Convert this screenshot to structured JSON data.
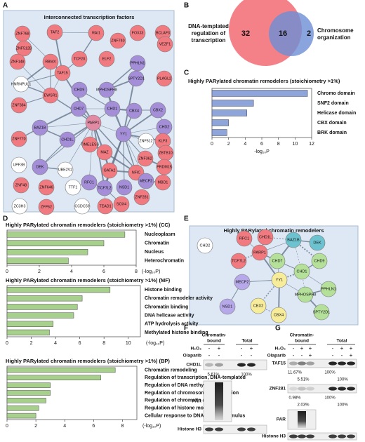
{
  "panel_labels": [
    "A",
    "B",
    "C",
    "D",
    "E",
    "F",
    "G"
  ],
  "network_a": {
    "title": "Interconnected transcription factors",
    "nodes": [
      {
        "label": "ZNF768",
        "color": "#f07a80"
      },
      {
        "label": "TAF2",
        "color": "#f07a80"
      },
      {
        "label": "RAI1",
        "color": "#f07a80"
      },
      {
        "label": "FOXJ3",
        "color": "#f07a80"
      },
      {
        "label": "BCLAF3",
        "color": "#f07a80"
      },
      {
        "label": "ZNF512B",
        "color": "#f07a80"
      },
      {
        "label": "ZNF740",
        "color": "#f07a80"
      },
      {
        "label": "VEZF1",
        "color": "#f07a80"
      },
      {
        "label": "ZNF148",
        "color": "#f07a80"
      },
      {
        "label": "RBMX",
        "color": "#f07a80"
      },
      {
        "label": "TCF20",
        "color": "#f07a80"
      },
      {
        "label": "ELF2",
        "color": "#f07a80"
      },
      {
        "label": "PPHLN1",
        "color": "#a48ed8"
      },
      {
        "label": "TAF15",
        "color": "#f07a80"
      },
      {
        "label": "SPTY2D1",
        "color": "#a48ed8"
      },
      {
        "label": "PLAGL2",
        "color": "#f07a80"
      },
      {
        "label": "HNRNPUL1",
        "color": "#ffffff"
      },
      {
        "label": "CHD9",
        "color": "#a48ed8"
      },
      {
        "label": "MPHOSPH8",
        "color": "#a48ed8"
      },
      {
        "label": "EWSR1",
        "color": "#f07a80"
      },
      {
        "label": "CHD7",
        "color": "#a48ed8"
      },
      {
        "label": "CHD1",
        "color": "#a48ed8"
      },
      {
        "label": "CBX4",
        "color": "#a48ed8"
      },
      {
        "label": "CBX2",
        "color": "#a48ed8"
      },
      {
        "label": "CHD2",
        "color": "#a48ed8"
      },
      {
        "label": "ZNF384",
        "color": "#f07a80"
      },
      {
        "label": "PARP1",
        "color": "#e28aa4"
      },
      {
        "label": "YY1",
        "color": "#a48ed8"
      },
      {
        "label": "ZNF512",
        "color": "#ffffff"
      },
      {
        "label": "KLF3",
        "color": "#f07a80"
      },
      {
        "label": "BAZ1B",
        "color": "#a48ed8"
      },
      {
        "label": "CHD1L",
        "color": "#a48ed8"
      },
      {
        "label": "ZNF770",
        "color": "#f07a80"
      },
      {
        "label": "ZBTB10",
        "color": "#f07a80"
      },
      {
        "label": "TIMELESS",
        "color": "#f07a80"
      },
      {
        "label": "MAZ",
        "color": "#f07a80"
      },
      {
        "label": "ZNF362",
        "color": "#f07a80"
      },
      {
        "label": "UPF3B",
        "color": "#ffffff"
      },
      {
        "label": "DEK",
        "color": "#a48ed8"
      },
      {
        "label": "UBE2V2",
        "color": "#ffffff"
      },
      {
        "label": "GATA2",
        "color": "#f07a80"
      },
      {
        "label": "NFIC",
        "color": "#f07a80"
      },
      {
        "label": "PRDM15",
        "color": "#f07a80"
      },
      {
        "label": "TCF7L2",
        "color": "#a48ed8"
      },
      {
        "label": "RFC1",
        "color": "#a48ed8"
      },
      {
        "label": "MECP2",
        "color": "#a48ed8"
      },
      {
        "label": "MBD1",
        "color": "#f07a80"
      },
      {
        "label": "ZNF48",
        "color": "#f07a80"
      },
      {
        "label": "ZNF646",
        "color": "#f07a80"
      },
      {
        "label": "TTF1",
        "color": "#ffffff"
      },
      {
        "label": "NSD1",
        "color": "#a48ed8"
      },
      {
        "label": "SOX4",
        "color": "#f07a80"
      },
      {
        "label": "ZNF281",
        "color": "#f07a80"
      },
      {
        "label": "ZC3H3",
        "color": "#ffffff"
      },
      {
        "label": "ZFP62",
        "color": "#f07a80"
      },
      {
        "label": "CCDC59",
        "color": "#ffffff"
      },
      {
        "label": "TEAD1",
        "color": "#f07a80"
      }
    ]
  },
  "venn": {
    "left_label": [
      "DNA-templated",
      "regulation of",
      "transcription"
    ],
    "right_label": [
      "Chromosome",
      "organization"
    ],
    "left_only": 32,
    "overlap": 16,
    "right_only": 2,
    "left_color": "#f26b73",
    "right_color": "#6d8fd6"
  },
  "chart_data": [
    {
      "type": "bar",
      "title": "Highly PARylated chromatin remodelers (stoichiometry >1%)",
      "categories": [
        "Chromo domain",
        "SNF2 domain",
        "Helicase domain",
        "CBX domain",
        "BRK domain"
      ],
      "values": [
        11.5,
        5,
        4.2,
        2,
        1.8
      ],
      "color": "#8ea5dc",
      "xlim": [
        0,
        12
      ],
      "xticks": [
        0,
        2,
        4,
        6,
        8,
        10,
        12
      ],
      "xlabel": "-log₁₀P"
    },
    {
      "type": "bar",
      "title": "Highly PARylated chromatin remodelers (stoichiometry >1%) (CC)",
      "categories": [
        "Nucleoplasm",
        "Chromatin",
        "Nucleus",
        "Heterochromatin"
      ],
      "values": [
        7.3,
        6,
        5,
        3.8
      ],
      "color": "#a8d08d",
      "xlim": [
        0,
        8
      ],
      "xticks": [
        0,
        2,
        4,
        6,
        8
      ],
      "xlabel": "(-log₁₀P)"
    },
    {
      "type": "bar",
      "title": "Highly PARylated chromatin remodelers (stoichiometry >1%) (MF)",
      "categories": [
        "Histone binding",
        "Chromatin remodeler activity",
        "Chromatin binding",
        "DNA helicase activity",
        "ATP hydrolysis activity",
        "Methylated histone binding"
      ],
      "values": [
        8.5,
        6.2,
        5.8,
        5.5,
        3.8,
        3.5
      ],
      "color": "#a8d08d",
      "xlim": [
        0,
        11
      ],
      "xticks": [
        0,
        2,
        4,
        6,
        8,
        10
      ],
      "xlabel": "(-log₁₀P)"
    },
    {
      "type": "bar",
      "title": "Highly PARylated chromatin remodelers (stoichiometry >1%) (BP)",
      "categories": [
        "Chromatin remodeling",
        "Regulation of transcription, DNA-templated",
        "Regulation of DNA methylation",
        "Regulation of chromosome organization",
        "Regulation of chromatin assembly",
        "Regulation of histone modification",
        "Cellular response to DNA damage stimulus"
      ],
      "values": [
        7.5,
        6.5,
        3,
        3,
        2.7,
        2.2,
        2
      ],
      "color": "#a8d08d",
      "xlim": [
        0,
        9
      ],
      "xticks": [
        0,
        2,
        4,
        6,
        8
      ],
      "xlabel": "(-log₁₀P)"
    }
  ],
  "network_e": {
    "title": "Highly PARylated chromatin remodelers",
    "nodes": [
      {
        "label": "CHD2",
        "color": "#ffffff"
      },
      {
        "label": "RFC1",
        "color": "#f07a80"
      },
      {
        "label": "CHD1L",
        "color": "#f07a80"
      },
      {
        "label": "BAZ1B",
        "color": "#6cc3cf"
      },
      {
        "label": "DEK",
        "color": "#6cc3cf"
      },
      {
        "label": "PARP1",
        "color": "#f07a80"
      },
      {
        "label": "TCF7L2",
        "color": "#f07a80"
      },
      {
        "label": "CHD7",
        "color": "#b4e09a"
      },
      {
        "label": "CHD9",
        "color": "#b4e09a"
      },
      {
        "label": "CHD1",
        "color": "#b4e09a"
      },
      {
        "label": "YY1",
        "color": "#f7ec9a"
      },
      {
        "label": "MECP2",
        "color": "#b7a8ea"
      },
      {
        "label": "NSD1",
        "color": "#b7a8ea"
      },
      {
        "label": "CBX2",
        "color": "#f7ec9a"
      },
      {
        "label": "CBX4",
        "color": "#f7ec9a"
      },
      {
        "label": "MPHOSPH8",
        "color": "#b4e09a"
      },
      {
        "label": "PPHLN1",
        "color": "#b4e09a"
      },
      {
        "label": "SPTY2D1",
        "color": "#b4e09a"
      }
    ]
  },
  "blot_f": {
    "headers": {
      "chromatin_bound": [
        "Chromatin-",
        "bound"
      ],
      "total": "Total"
    },
    "treatments": [
      {
        "label": "H₂O₂",
        "lanes": [
          "-",
          "+",
          "-",
          "+"
        ]
      },
      {
        "label": "Olaparib",
        "lanes": [
          "-",
          "-",
          "-",
          "-"
        ]
      }
    ],
    "blots": [
      {
        "label": "CHD1L",
        "quantification": [
          [
            "5.61%",
            "100%"
          ]
        ]
      },
      {
        "label": "PAR"
      },
      {
        "label": "Histone H3"
      }
    ]
  },
  "blot_g": {
    "headers": {
      "chromatin_bound": [
        "Chromatin-",
        "bound"
      ],
      "total": "Total"
    },
    "treatments": [
      {
        "label": "H₂O₂",
        "lanes": [
          "-",
          "+",
          "+",
          "-",
          "+",
          "+"
        ]
      },
      {
        "label": "Olaparib",
        "lanes": [
          "-",
          "-",
          "+",
          "-",
          "-",
          "+"
        ]
      }
    ],
    "blots": [
      {
        "label": "TAF15",
        "quantification": [
          [
            "11.67%",
            "100%"
          ],
          [
            "5.51%",
            "100%"
          ]
        ]
      },
      {
        "label": "ZNF281",
        "quantification": [
          [
            "0.98%",
            "100%"
          ],
          [
            "2.03%",
            "100%"
          ]
        ]
      },
      {
        "label": "PAR"
      },
      {
        "label": "Histone H3"
      }
    ]
  }
}
